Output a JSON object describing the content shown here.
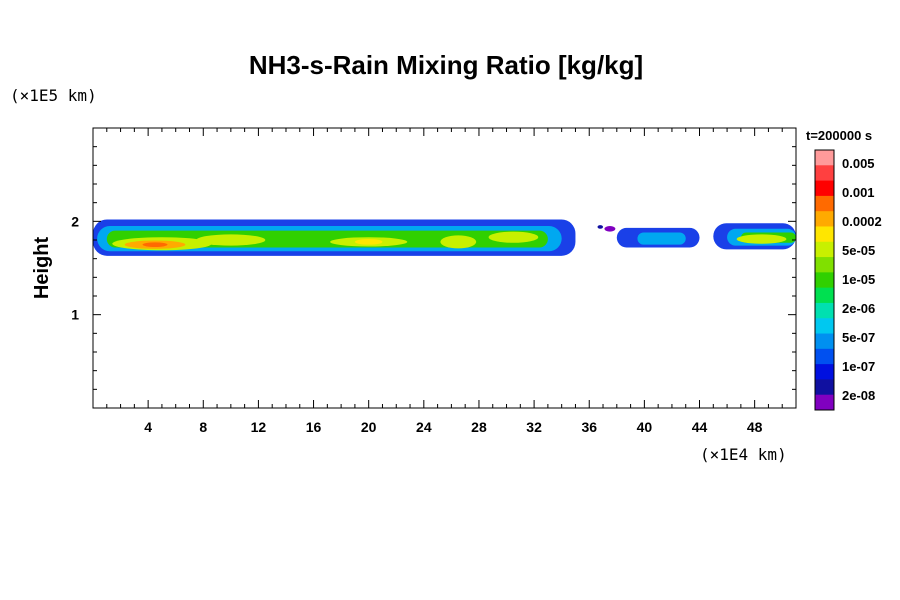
{
  "chart_data": {
    "type": "heatmap",
    "title": "NH3-s-Rain Mixing Ratio [kg/kg]",
    "ylabel": "Height",
    "xunit": "(×1E4 km)",
    "yunit": "(×1E5 km)",
    "time_label": "t=200000 s",
    "xlim": [
      0,
      51
    ],
    "ylim": [
      0,
      3
    ],
    "x_ticks": [
      "4",
      "8",
      "12",
      "16",
      "20",
      "24",
      "28",
      "32",
      "36",
      "40",
      "44",
      "48"
    ],
    "y_ticks": [
      "1",
      "2"
    ],
    "colorbar": {
      "labels": [
        "0.005",
        "0.001",
        "0.0002",
        "5e-05",
        "1e-05",
        "2e-06",
        "5e-07",
        "1e-07",
        "2e-08"
      ],
      "colors": [
        "#ff9a9a",
        "#ff4040",
        "#ff0000",
        "#ff6a00",
        "#ffaa00",
        "#ffe600",
        "#c8f000",
        "#80e000",
        "#30d000",
        "#00e050",
        "#00e0b0",
        "#00c8f0",
        "#0090f0",
        "#0050f0",
        "#0010e0",
        "#1010a0",
        "#8000c0"
      ]
    },
    "bands": [
      {
        "x0": 0,
        "x1": 35,
        "y0": 1.63,
        "y1": 2.02,
        "color": "#1a40e8"
      },
      {
        "x0": 0.3,
        "x1": 34,
        "y0": 1.68,
        "y1": 1.95,
        "color": "#00a8f0"
      },
      {
        "x0": 1,
        "x1": 33,
        "y0": 1.72,
        "y1": 1.9,
        "color": "#30d000"
      },
      {
        "x0": 38,
        "x1": 44,
        "y0": 1.72,
        "y1": 1.93,
        "color": "#1a40e8"
      },
      {
        "x0": 39.5,
        "x1": 43,
        "y0": 1.75,
        "y1": 1.88,
        "color": "#00a8f0"
      },
      {
        "x0": 45,
        "x1": 51,
        "y0": 1.7,
        "y1": 1.98,
        "color": "#1a40e8"
      },
      {
        "x0": 46,
        "x1": 51,
        "y0": 1.74,
        "y1": 1.92,
        "color": "#00a8f0"
      },
      {
        "x0": 47,
        "x1": 51,
        "y0": 1.77,
        "y1": 1.88,
        "color": "#30d000"
      }
    ],
    "blobs": [
      {
        "x": 5,
        "y": 1.76,
        "rx": 3.6,
        "ry": 0.07,
        "color": "#c8f000"
      },
      {
        "x": 4.5,
        "y": 1.75,
        "rx": 2.2,
        "ry": 0.045,
        "color": "#ffaa00"
      },
      {
        "x": 4.5,
        "y": 1.75,
        "rx": 0.9,
        "ry": 0.025,
        "color": "#ff6a00"
      },
      {
        "x": 10,
        "y": 1.8,
        "rx": 2.5,
        "ry": 0.06,
        "color": "#c8f000"
      },
      {
        "x": 20,
        "y": 1.78,
        "rx": 2.8,
        "ry": 0.05,
        "color": "#c8f000"
      },
      {
        "x": 20,
        "y": 1.78,
        "rx": 1.0,
        "ry": 0.03,
        "color": "#ffe600"
      },
      {
        "x": 26.5,
        "y": 1.78,
        "rx": 1.3,
        "ry": 0.07,
        "color": "#c8f000"
      },
      {
        "x": 30.5,
        "y": 1.83,
        "rx": 1.8,
        "ry": 0.06,
        "color": "#c8f000"
      },
      {
        "x": 48.5,
        "y": 1.81,
        "rx": 1.8,
        "ry": 0.05,
        "color": "#c8f000"
      },
      {
        "x": 37.5,
        "y": 1.92,
        "rx": 0.4,
        "ry": 0.03,
        "color": "#8000c0"
      },
      {
        "x": 36.8,
        "y": 1.94,
        "rx": 0.2,
        "ry": 0.02,
        "color": "#1010a0"
      }
    ]
  }
}
